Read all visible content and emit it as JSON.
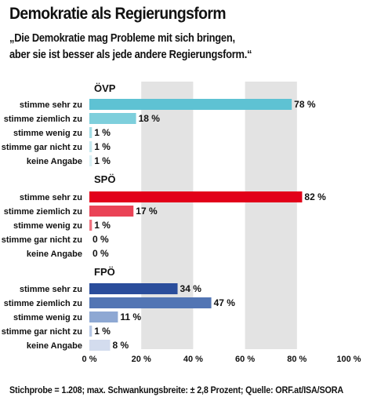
{
  "title": "Demokratie als Regierungsform",
  "subtitle_line1": "„Die Demokratie mag Probleme mit sich bringen,",
  "subtitle_line2": "aber sie ist besser als jede andere Regierungsform.“",
  "footnote": "Stichprobe = 1.208; max. Schwankungsbreite: ± 2,8 Prozent; Quelle: ORF.at/ISA/SORA",
  "chart_data": {
    "type": "bar",
    "orientation": "horizontal",
    "xlim": [
      0,
      100
    ],
    "x_ticks": [
      0,
      20,
      40,
      60,
      80,
      100
    ],
    "tick_labels": [
      "0 %",
      "20 %",
      "40 %",
      "60 %",
      "80 %",
      "100 %"
    ],
    "grid": "alternating vertical bands",
    "value_suffix": " %",
    "categories": [
      "stimme sehr zu",
      "stimme ziemlich zu",
      "stimme wenig zu",
      "stimme gar nicht zu",
      "keine Angabe"
    ],
    "groups": [
      {
        "name": "ÖVP",
        "values": [
          78,
          18,
          1,
          1,
          1
        ],
        "colors": [
          "#5ec2d3",
          "#7ecfdc",
          "#a3dde6",
          "#c6e9ef",
          "#dbf1f5"
        ]
      },
      {
        "name": "SPÖ",
        "values": [
          82,
          17,
          1,
          0,
          0
        ],
        "colors": [
          "#e2001a",
          "#ea4356",
          "#f0727f",
          "#f5a0a9",
          "#f9c5ca"
        ]
      },
      {
        "name": "FPÖ",
        "values": [
          34,
          47,
          11,
          1,
          8
        ],
        "colors": [
          "#2a4d9b",
          "#5275b4",
          "#8ea8d3",
          "#b6c7e4",
          "#d3dcee"
        ]
      }
    ]
  }
}
